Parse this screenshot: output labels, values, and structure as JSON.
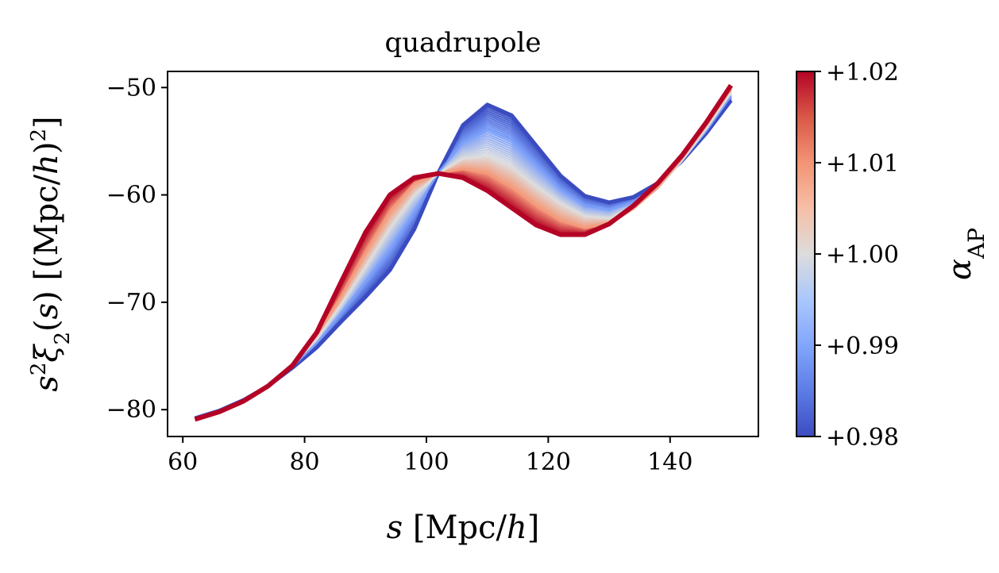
{
  "chart_data": {
    "type": "line",
    "title": "quadrupole",
    "xlabel": "s [Mpc/h]",
    "ylabel": "s²ξ₂(s) [(Mpc/h)²]",
    "xlim": [
      57.5,
      154.5
    ],
    "ylim": [
      -82.5,
      -48.5
    ],
    "xticks": [
      60,
      80,
      100,
      120,
      140
    ],
    "yticks": [
      -50,
      -60,
      -70,
      -80
    ],
    "grid": false,
    "colorbar": {
      "label": "α_AP",
      "range": [
        0.98,
        1.02
      ],
      "ticks": [
        "+0.98",
        "+0.99",
        "+1.00",
        "+1.01",
        "+1.02"
      ],
      "colormap": "coolwarm"
    },
    "x": [
      62,
      66,
      70,
      74,
      78,
      82,
      86,
      90,
      94,
      98,
      102,
      106,
      110,
      114,
      118,
      122,
      126,
      130,
      134,
      138,
      142,
      146,
      150
    ],
    "series": [
      {
        "alpha": 0.98,
        "color": "#3b4cc0",
        "values": [
          -80.8,
          -80.1,
          -79.1,
          -77.8,
          -76.1,
          -74.2,
          -71.8,
          -69.5,
          -67.0,
          -63.2,
          -57.9,
          -53.5,
          -51.6,
          -52.6,
          -55.4,
          -58.2,
          -60.1,
          -60.7,
          -60.2,
          -58.9,
          -56.8,
          -54.2,
          -51.2
        ]
      },
      {
        "alpha": 0.99,
        "color": "#7b9ff9",
        "values": [
          -80.8,
          -80.1,
          -79.1,
          -77.8,
          -76.0,
          -73.8,
          -71.0,
          -68.1,
          -65.1,
          -61.6,
          -57.9,
          -55.1,
          -53.9,
          -54.9,
          -57.2,
          -59.5,
          -61.0,
          -61.4,
          -60.7,
          -59.1,
          -56.8,
          -54.0,
          -50.8
        ]
      },
      {
        "alpha": 1.0,
        "color": "#dddcdc",
        "values": [
          -80.8,
          -80.1,
          -79.1,
          -77.8,
          -75.9,
          -73.4,
          -70.2,
          -66.7,
          -63.1,
          -60.0,
          -58.0,
          -56.6,
          -56.4,
          -57.4,
          -59.2,
          -60.8,
          -62.0,
          -62.2,
          -61.2,
          -59.4,
          -56.8,
          -53.8,
          -50.5
        ]
      },
      {
        "alpha": 1.01,
        "color": "#f49a7b",
        "values": [
          -80.9,
          -80.2,
          -79.2,
          -77.8,
          -75.9,
          -73.1,
          -69.4,
          -65.3,
          -61.5,
          -58.9,
          -58.0,
          -57.6,
          -58.0,
          -59.3,
          -61.0,
          -62.4,
          -63.1,
          -62.7,
          -61.3,
          -59.3,
          -56.6,
          -53.5,
          -50.1
        ]
      },
      {
        "alpha": 1.02,
        "color": "#b40426",
        "values": [
          -80.9,
          -80.2,
          -79.2,
          -77.8,
          -75.9,
          -72.8,
          -68.1,
          -63.5,
          -60.0,
          -58.4,
          -58.0,
          -58.4,
          -59.6,
          -61.2,
          -62.8,
          -63.7,
          -63.7,
          -62.7,
          -61.0,
          -58.9,
          -56.3,
          -53.2,
          -49.8
        ]
      }
    ]
  }
}
